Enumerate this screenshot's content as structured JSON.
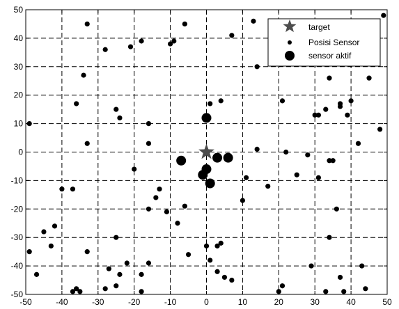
{
  "chart_data": {
    "type": "scatter",
    "xlim": [
      -50,
      50
    ],
    "ylim": [
      -50,
      50
    ],
    "xticks": [
      -50,
      -40,
      -30,
      -20,
      -10,
      0,
      10,
      20,
      30,
      40,
      50
    ],
    "yticks": [
      -50,
      -40,
      -30,
      -20,
      -10,
      0,
      10,
      20,
      30,
      40,
      50
    ],
    "grid": true,
    "grid_style": "dashed",
    "legend_position": "top-right",
    "series": [
      {
        "name": "target",
        "marker": "star",
        "color": "#4d4d4d",
        "points": [
          [
            0,
            0
          ]
        ]
      },
      {
        "name": "Posisi Sensor",
        "marker": "small-dot",
        "color": "#000000",
        "points": [
          [
            -49,
            10
          ],
          [
            -49,
            -35
          ],
          [
            -47,
            -43
          ],
          [
            -45,
            -28
          ],
          [
            -43,
            -33
          ],
          [
            -42,
            -26
          ],
          [
            -40,
            -13
          ],
          [
            -37,
            -13
          ],
          [
            -36,
            17
          ],
          [
            -34,
            27
          ],
          [
            -33,
            45
          ],
          [
            -33,
            3
          ],
          [
            -33,
            -35
          ],
          [
            -36,
            -48
          ],
          [
            -37,
            -49
          ],
          [
            -35,
            -49
          ],
          [
            -28,
            36
          ],
          [
            -25,
            15
          ],
          [
            -24,
            12
          ],
          [
            -25,
            -30
          ],
          [
            -27,
            -41
          ],
          [
            -28,
            -48
          ],
          [
            -25,
            -47
          ],
          [
            -24,
            -43
          ],
          [
            -22,
            -39
          ],
          [
            -21,
            37
          ],
          [
            -20,
            -6
          ],
          [
            -18,
            39
          ],
          [
            -16,
            10
          ],
          [
            -16,
            3
          ],
          [
            -16,
            -20
          ],
          [
            -16,
            -39
          ],
          [
            -18,
            -43
          ],
          [
            -18,
            -49
          ],
          [
            -14,
            -16
          ],
          [
            -13,
            -13
          ],
          [
            -10,
            38
          ],
          [
            -9,
            39
          ],
          [
            -6,
            45
          ],
          [
            -6,
            -19
          ],
          [
            -5,
            -36
          ],
          [
            -8,
            -25
          ],
          [
            -11,
            -21
          ],
          [
            1,
            17
          ],
          [
            4,
            18
          ],
          [
            1,
            -38
          ],
          [
            0,
            -33
          ],
          [
            3,
            -33
          ],
          [
            4,
            -32
          ],
          [
            3,
            -42
          ],
          [
            5,
            -44
          ],
          [
            7,
            -45
          ],
          [
            7,
            41
          ],
          [
            13,
            46
          ],
          [
            14,
            30
          ],
          [
            14,
            1
          ],
          [
            10,
            -17
          ],
          [
            11,
            -9
          ],
          [
            17,
            -12
          ],
          [
            21,
            18
          ],
          [
            22,
            0
          ],
          [
            25,
            -8
          ],
          [
            28,
            -1
          ],
          [
            30,
            13
          ],
          [
            31,
            13
          ],
          [
            31,
            -9
          ],
          [
            33,
            15
          ],
          [
            34,
            26
          ],
          [
            34,
            -3
          ],
          [
            35,
            -3
          ],
          [
            36,
            -20
          ],
          [
            34,
            -30
          ],
          [
            37,
            16
          ],
          [
            37,
            17
          ],
          [
            39,
            13
          ],
          [
            40,
            18
          ],
          [
            42,
            3
          ],
          [
            45,
            26
          ],
          [
            48,
            8
          ],
          [
            49,
            48
          ],
          [
            21,
            -47
          ],
          [
            20,
            -49
          ],
          [
            29,
            -40
          ],
          [
            33,
            -49
          ],
          [
            37,
            -44
          ],
          [
            38,
            -49
          ],
          [
            43,
            -40
          ],
          [
            44,
            -48
          ]
        ]
      },
      {
        "name": "sensor aktif",
        "marker": "large-dot",
        "color": "#000000",
        "points": [
          [
            0,
            12
          ],
          [
            -7,
            -3
          ],
          [
            -1,
            -8
          ],
          [
            0,
            -6
          ],
          [
            1,
            -11
          ],
          [
            3,
            -2
          ],
          [
            6,
            -2
          ]
        ]
      }
    ]
  }
}
